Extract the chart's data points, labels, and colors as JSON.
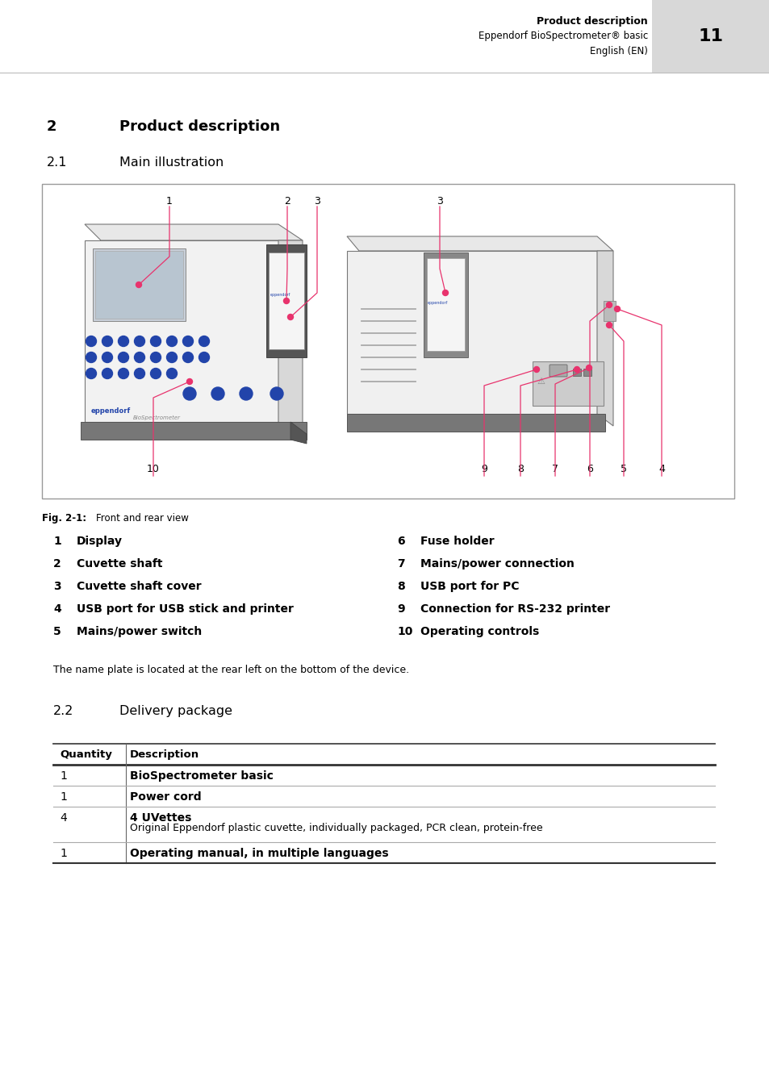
{
  "page_title": "Product description",
  "page_subtitle1": "Eppendorf BioSpectrometer® basic",
  "page_subtitle2": "English (EN)",
  "page_number": "11",
  "section2_number": "2",
  "section2_title": "Product description",
  "section21_number": "2.1",
  "section21_title": "Main illustration",
  "fig_caption_bold": "Fig. 2-1:",
  "fig_caption_normal": "    Front and rear view",
  "items_left": [
    {
      "num": "1",
      "label": "Display"
    },
    {
      "num": "2",
      "label": "Cuvette shaft"
    },
    {
      "num": "3",
      "label": "Cuvette shaft cover"
    },
    {
      "num": "4",
      "label": "USB port for USB stick and printer"
    },
    {
      "num": "5",
      "label": "Mains/power switch"
    }
  ],
  "items_right": [
    {
      "num": "6",
      "label": "Fuse holder"
    },
    {
      "num": "7",
      "label": "Mains/power connection"
    },
    {
      "num": "8",
      "label": "USB port for PC"
    },
    {
      "num": "9",
      "label": "Connection for RS-232 printer"
    },
    {
      "num": "10",
      "label": "Operating controls"
    }
  ],
  "nameplate_note": "The name plate is located at the rear left on the bottom of the device.",
  "section22_number": "2.2",
  "section22_title": "Delivery package",
  "table_headers": [
    "Quantity",
    "Description"
  ],
  "table_rows": [
    {
      "qty": "1",
      "desc_bold": "BioSpectrometer basic",
      "desc_normal": ""
    },
    {
      "qty": "1",
      "desc_bold": "Power cord",
      "desc_normal": ""
    },
    {
      "qty": "4",
      "desc_bold": "4 UVettes",
      "desc_normal": "Original Eppendorf plastic cuvette, individually packaged, PCR clean, protein-free"
    },
    {
      "qty": "1",
      "desc_bold": "Operating manual, in multiple languages",
      "desc_normal": ""
    }
  ],
  "bg_color": "#ffffff",
  "header_bg": "#d8d8d8",
  "text_color": "#000000",
  "pink_color": "#e8336d",
  "fig_box_color": "#f8f8f8",
  "device_body_color": "#f0f0f0",
  "device_dark_color": "#888888",
  "device_base_color": "#666666",
  "screen_color": "#d0d8e0",
  "btn_color": "#2244aa",
  "shaft_color": "#999999",
  "vent_color": "#888888"
}
